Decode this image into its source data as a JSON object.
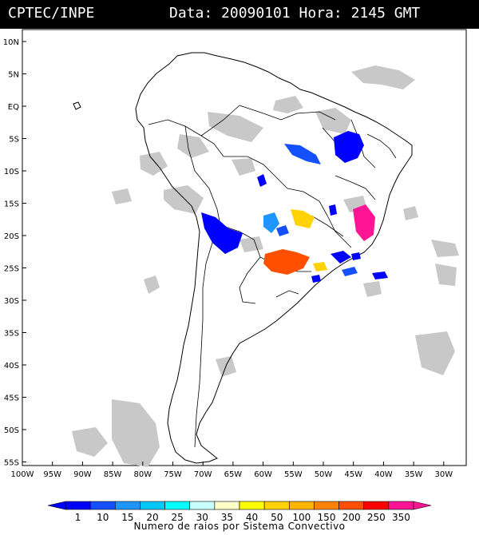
{
  "header": {
    "agency": "CPTEC/INPE",
    "datetime": "Data: 20090101 Hora: 2145 GMT"
  },
  "map": {
    "lat_labels": [
      "10N",
      "5N",
      "EQ",
      "5S",
      "10S",
      "15S",
      "20S",
      "25S",
      "30S",
      "35S",
      "40S",
      "45S",
      "50S",
      "55S"
    ],
    "lon_labels": [
      "100W",
      "95W",
      "90W",
      "85W",
      "80W",
      "75W",
      "70W",
      "65W",
      "60W",
      "55W",
      "50W",
      "45W",
      "40W",
      "35W",
      "30W"
    ],
    "background_color": "#ffffff",
    "cloud_color": "#c8c8c8"
  },
  "legend": {
    "values": [
      "1",
      "10",
      "15",
      "20",
      "25",
      "30",
      "35",
      "40",
      "50",
      "100",
      "150",
      "200",
      "250",
      "350"
    ],
    "colors": [
      "#0000ff",
      "#1450ff",
      "#1e96ff",
      "#00c8ff",
      "#00ffff",
      "#c8ffff",
      "#ffffc8",
      "#ffff00",
      "#ffd200",
      "#ffb400",
      "#ff8200",
      "#ff5000",
      "#ff0000",
      "#ff1493"
    ],
    "label": "Numero de raios por Sistema Convectivo"
  }
}
